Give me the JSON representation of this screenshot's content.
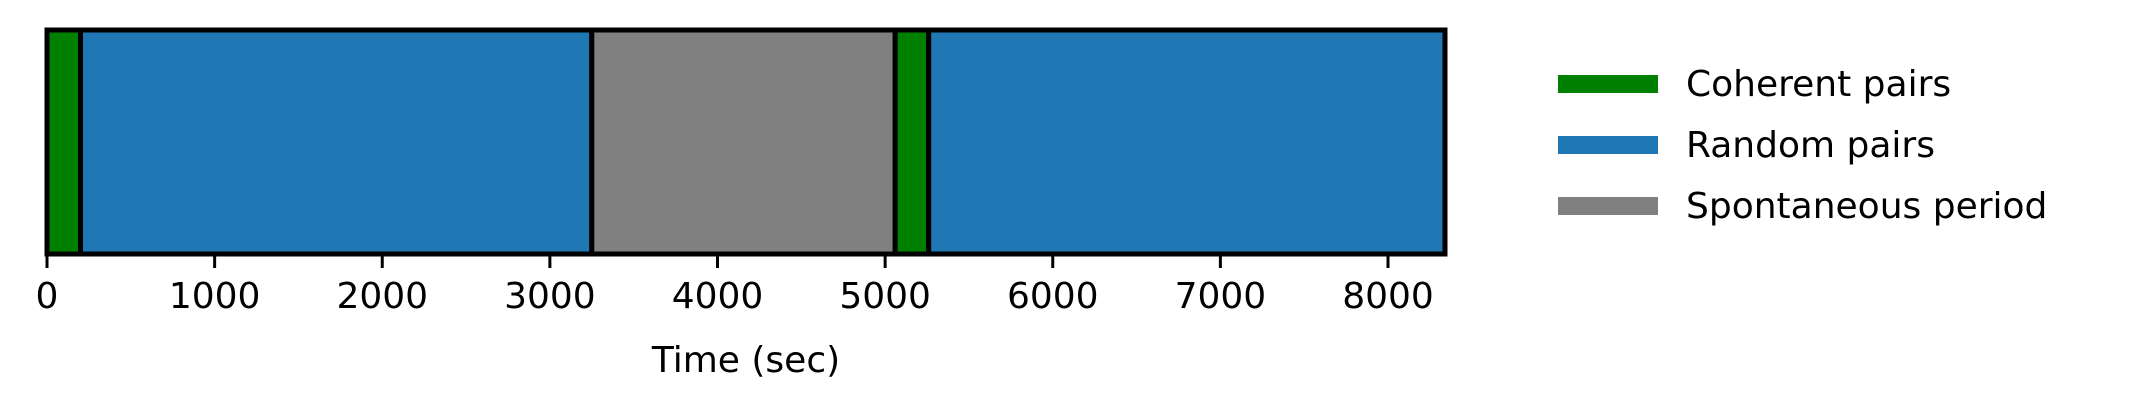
{
  "chart_data": {
    "type": "timeline",
    "title": "",
    "xlabel": "Time (sec)",
    "ylabel": "",
    "xlim": [
      0,
      8340
    ],
    "xticks": [
      0,
      1000,
      2000,
      3000,
      4000,
      5000,
      6000,
      7000,
      8000
    ],
    "xtick_labels": [
      "0",
      "1000",
      "2000",
      "3000",
      "4000",
      "5000",
      "6000",
      "7000",
      "8000"
    ],
    "grid": false,
    "legend_position": "right",
    "segments": [
      {
        "category": "Coherent pairs",
        "start": 0,
        "end": 200
      },
      {
        "category": "Random pairs",
        "start": 200,
        "end": 3250
      },
      {
        "category": "Spontaneous period",
        "start": 3250,
        "end": 5060
      },
      {
        "category": "Coherent pairs",
        "start": 5060,
        "end": 5260
      },
      {
        "category": "Random pairs",
        "start": 5260,
        "end": 8340
      }
    ],
    "legend": [
      {
        "label": "Coherent pairs",
        "color": "#008000"
      },
      {
        "label": "Random pairs",
        "color": "#1f77b4"
      },
      {
        "label": "Spontaneous period",
        "color": "#808080"
      }
    ]
  }
}
